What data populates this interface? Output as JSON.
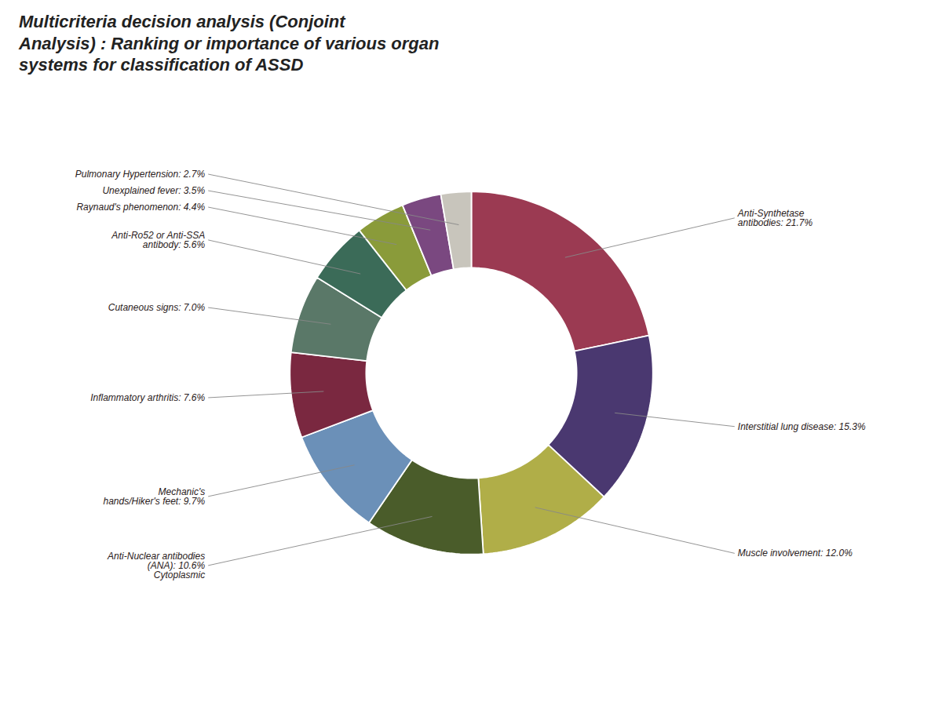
{
  "chart_data": {
    "type": "donut",
    "title": "Multicriteria decision analysis (Conjoint\nAnalysis) : Ranking or importance of various organ\nsystems for classification of ASSD",
    "categories": [
      "Anti-Synthetase\nantibodies: 21.7%",
      "Interstitial lung disease: 15.3%",
      "Muscle involvement: 12.0%",
      "Anti-Nuclear antibodies\n(ANA): 10.6%\nCytoplasmic",
      "Mechanic's\nhands/Hiker's feet: 9.7%",
      "Inflammatory arthritis: 7.6%",
      "Cutaneous signs: 7.0%",
      "Anti-Ro52 or Anti-SSA\nantibody: 5.6%",
      "Raynaud's phenomenon: 4.4%",
      "Unexplained fever: 3.5%",
      "Pulmonary Hypertension: 2.7%"
    ],
    "values": [
      21.7,
      15.3,
      12.0,
      10.6,
      9.7,
      7.6,
      7.0,
      5.6,
      4.4,
      3.5,
      2.7
    ],
    "colors": [
      "#9B3A52",
      "#4A3870",
      "#B0AE48",
      "#4A5C2A",
      "#6B90B8",
      "#7A2840",
      "#5A7868",
      "#3B6B58",
      "#8A9B3A",
      "#7A4880",
      "#C8C5BC"
    ]
  }
}
